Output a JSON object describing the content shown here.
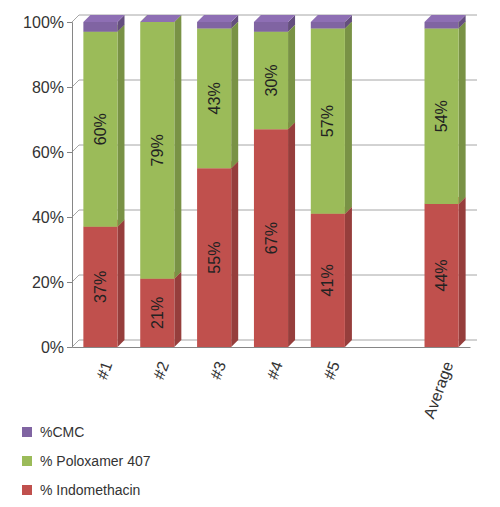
{
  "chart_data": {
    "type": "bar",
    "stacked": true,
    "grid": true,
    "legend": "bottom-left",
    "data_labels": true,
    "categories": [
      "#1",
      "#2",
      "#3",
      "#4",
      "#5",
      null,
      "Average"
    ],
    "series": [
      {
        "name": "% Indomethacin",
        "color": "#c0504d",
        "values": [
          37,
          21,
          55,
          67,
          41,
          null,
          44
        ],
        "value_labels": [
          "37%",
          "21%",
          "55%",
          "67%",
          "41%",
          null,
          "44%"
        ]
      },
      {
        "name": "% Poloxamer 407",
        "color": "#9bbb59",
        "values": [
          60,
          79,
          43,
          30,
          57,
          null,
          54
        ],
        "value_labels": [
          "60%",
          "79%",
          "43%",
          "30%",
          "57%",
          null,
          "54%"
        ]
      },
      {
        "name": "%CMC",
        "color": "#8064a2",
        "values": [
          3,
          0,
          2,
          3,
          2,
          null,
          2
        ]
      }
    ],
    "ylim": [
      0,
      100
    ],
    "yticks": [
      {
        "value": 0,
        "label": "0%"
      },
      {
        "value": 20,
        "label": "20%"
      },
      {
        "value": 40,
        "label": "40%"
      },
      {
        "value": 60,
        "label": "60%"
      },
      {
        "value": 80,
        "label": "80%"
      },
      {
        "value": 100,
        "label": "100%"
      }
    ]
  }
}
